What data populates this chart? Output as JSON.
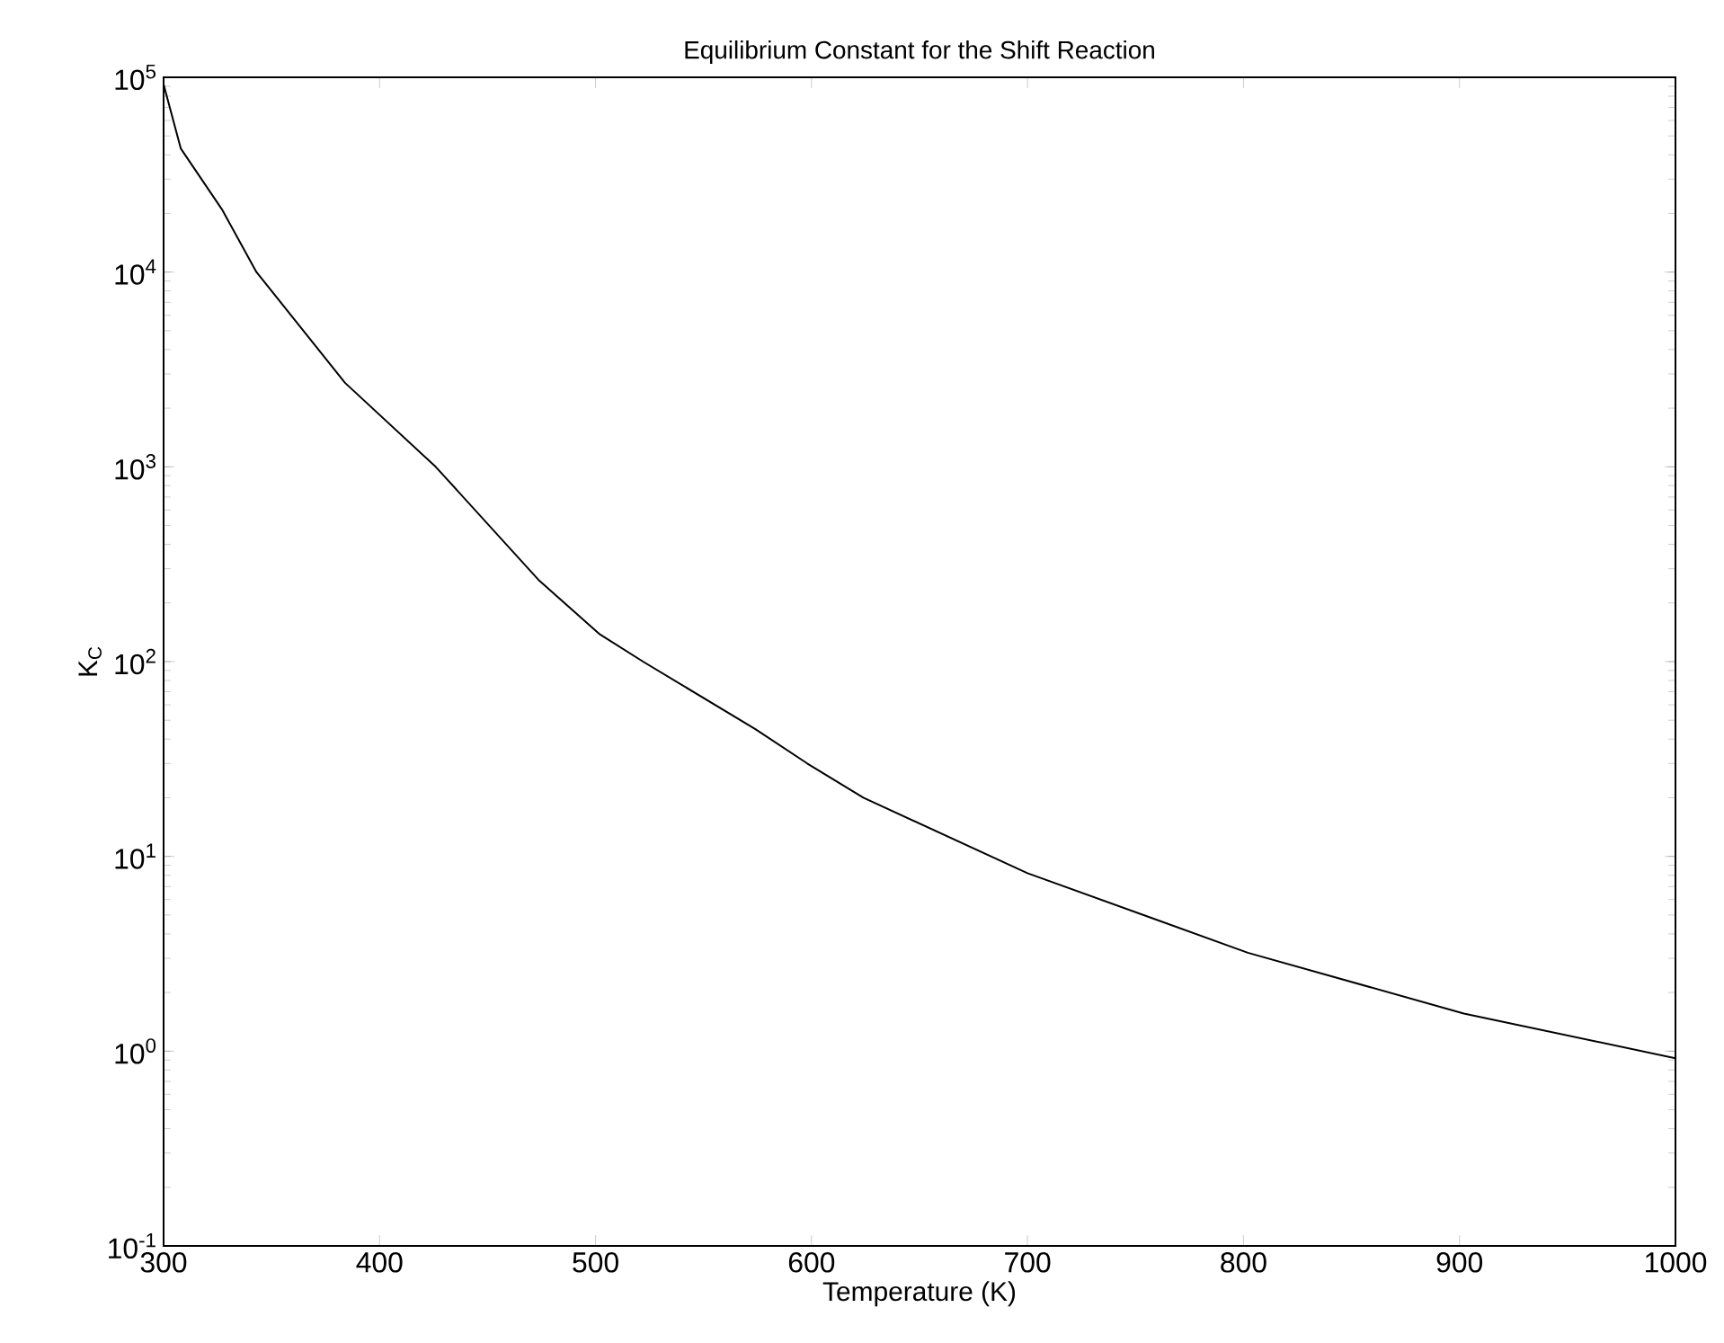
{
  "chart_data": {
    "type": "line",
    "title": "Equilibrium Constant for the Shift Reaction",
    "xlabel": "Temperature (K)",
    "ylabel": "K$_{C}$",
    "x": [
      300,
      308,
      327,
      343,
      384,
      426,
      474,
      502,
      522,
      574,
      598,
      624,
      700,
      802,
      902,
      1000
    ],
    "series": [
      {
        "color": "#000000",
        "values": [
          92000,
          43000,
          21000,
          10000,
          2700,
          1000,
          260,
          138,
          100,
          45,
          30,
          20,
          8.2,
          3.2,
          1.56,
          0.92
        ]
      }
    ],
    "log": "y",
    "grid": false,
    "marker": "none",
    "line_style": "solid",
    "xlim": [
      300,
      1000
    ],
    "xticks": [
      300,
      400,
      500,
      600,
      700,
      800,
      900,
      1000
    ],
    "ylim": [
      0.1,
      100000
    ],
    "yticks": [
      {
        "value": 0.1,
        "label": "10$^{-1}$"
      },
      {
        "value": 1,
        "label": "10$^{0}$"
      },
      {
        "value": 10,
        "label": "10$^{1}$"
      },
      {
        "value": 100,
        "label": "10$^{2}$"
      },
      {
        "value": 1000,
        "label": "10$^{3}$"
      },
      {
        "value": 10000,
        "label": "10$^{4}$"
      },
      {
        "value": 100000,
        "label": "10$^{5}$"
      }
    ]
  }
}
